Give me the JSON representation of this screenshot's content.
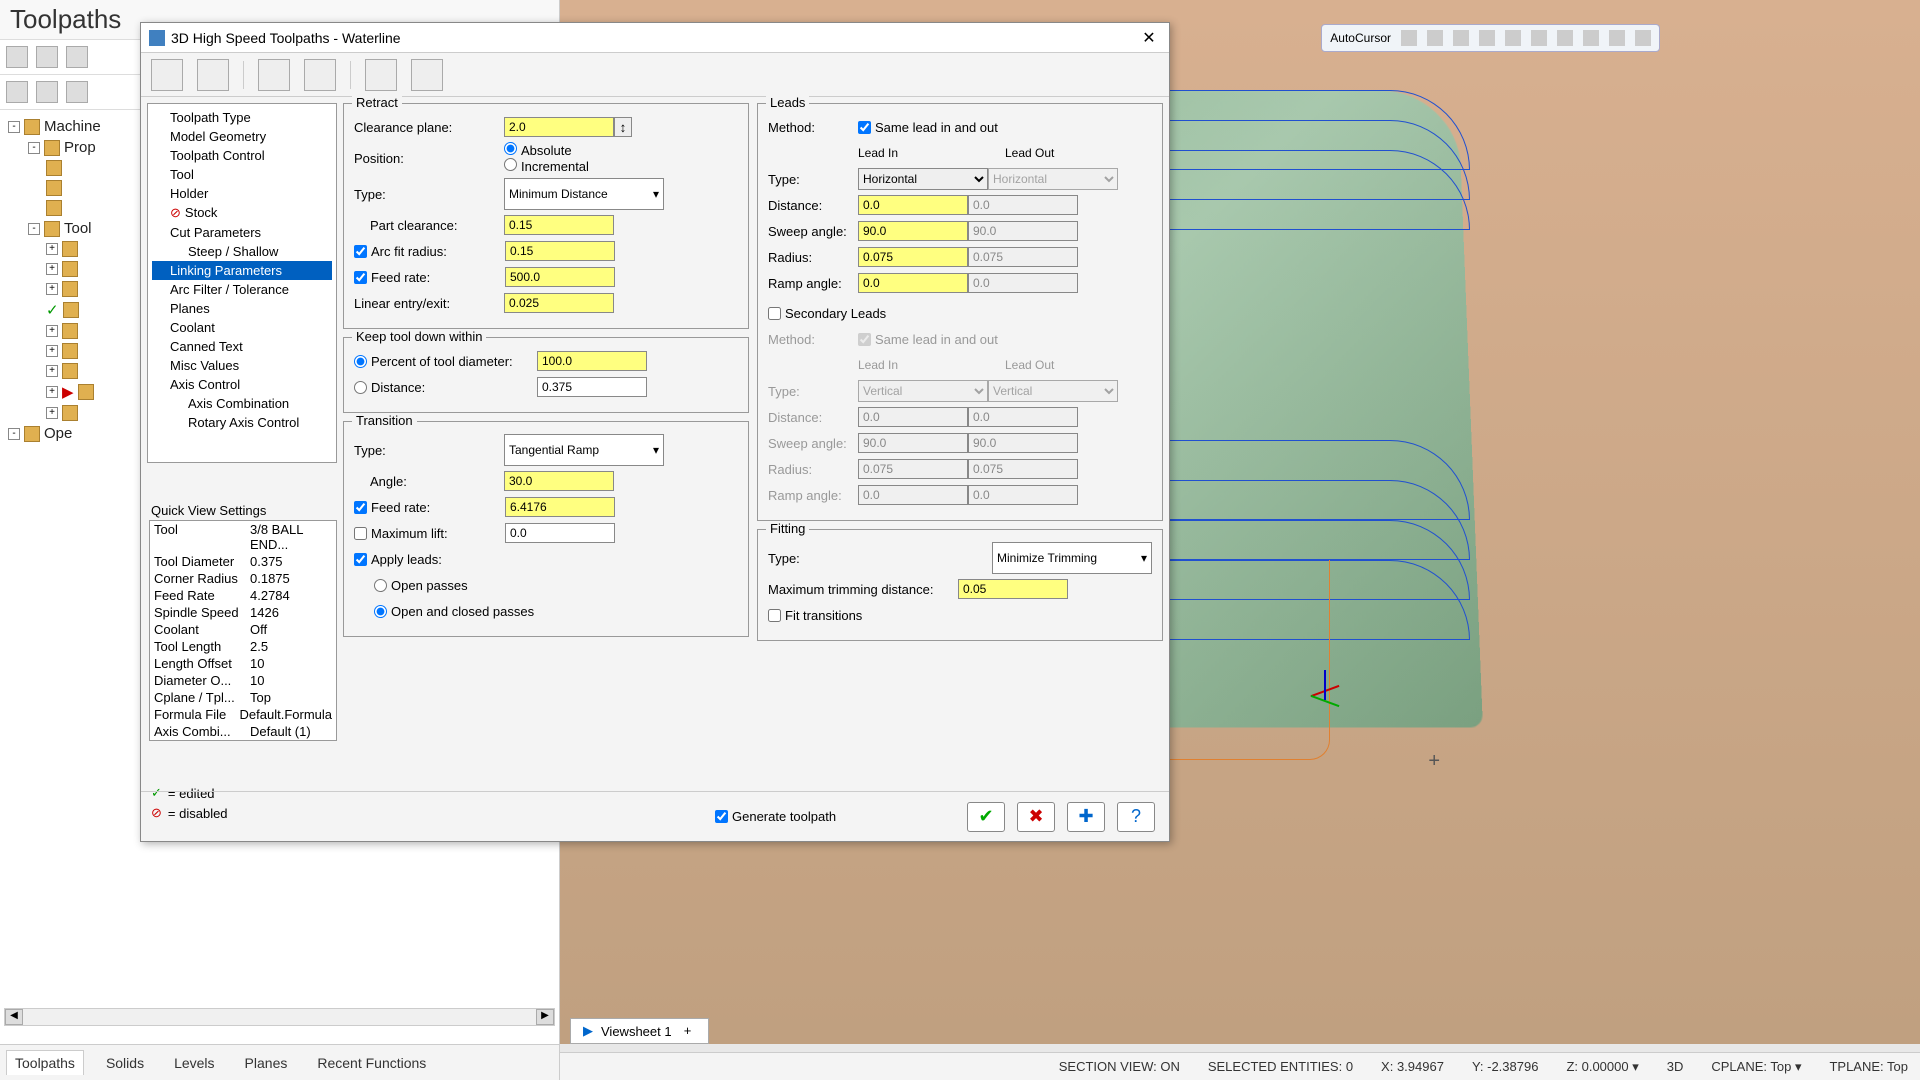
{
  "left": {
    "title": "Toolpaths",
    "tree": {
      "machine": "Machine",
      "prop": "Prop",
      "tool": "Tool",
      "ope": "Ope"
    },
    "bottom_tabs": [
      "Toolpaths",
      "Solids",
      "Levels",
      "Planes",
      "Recent Functions"
    ]
  },
  "dialog": {
    "title": "3D High Speed Toolpaths - Waterline",
    "tree": {
      "items": [
        {
          "label": "Toolpath Type"
        },
        {
          "label": "Model Geometry"
        },
        {
          "label": "Toolpath Control"
        },
        {
          "label": "Tool"
        },
        {
          "label": "Holder"
        },
        {
          "label": "Stock",
          "marker": true
        },
        {
          "label": "Cut Parameters"
        },
        {
          "label": "Steep / Shallow",
          "sub": true
        },
        {
          "label": "Linking Parameters",
          "sel": true
        },
        {
          "label": "Arc Filter / Tolerance"
        },
        {
          "label": "Planes"
        },
        {
          "label": "Coolant"
        },
        {
          "label": "Canned Text"
        },
        {
          "label": "Misc Values"
        },
        {
          "label": "Axis Control"
        },
        {
          "label": "Axis Combination",
          "sub": true
        },
        {
          "label": "Rotary Axis Control",
          "sub": true
        }
      ]
    },
    "qv": {
      "title": "Quick View Settings",
      "rows": [
        {
          "k": "Tool",
          "v": "3/8 BALL END..."
        },
        {
          "k": "Tool Diameter",
          "v": "0.375"
        },
        {
          "k": "Corner Radius",
          "v": "0.1875"
        },
        {
          "k": "Feed Rate",
          "v": "4.2784"
        },
        {
          "k": "Spindle Speed",
          "v": "1426"
        },
        {
          "k": "Coolant",
          "v": "Off"
        },
        {
          "k": "Tool Length",
          "v": "2.5"
        },
        {
          "k": "Length Offset",
          "v": "10"
        },
        {
          "k": "Diameter O...",
          "v": "10"
        },
        {
          "k": "Cplane / Tpl...",
          "v": "Top"
        },
        {
          "k": "Formula File",
          "v": "Default.Formula"
        },
        {
          "k": "Axis Combi...",
          "v": "Default (1)"
        }
      ]
    },
    "legend": {
      "edited": "= edited",
      "disabled": "= disabled"
    },
    "retract": {
      "title": "Retract",
      "clearance_label": "Clearance plane:",
      "clearance": "2.0",
      "position_label": "Position:",
      "absolute": "Absolute",
      "incremental": "Incremental",
      "type_label": "Type:",
      "type": "Minimum Distance",
      "part_clearance_label": "Part clearance:",
      "part_clearance": "0.15",
      "arc_fit_label": "Arc fit radius:",
      "arc_fit": "0.15",
      "feed_rate_label": "Feed rate:",
      "feed_rate": "500.0",
      "linear_label": "Linear entry/exit:",
      "linear": "0.025"
    },
    "keep": {
      "title": "Keep tool down within",
      "percent_label": "Percent of tool diameter:",
      "percent": "100.0",
      "distance_label": "Distance:",
      "distance": "0.375"
    },
    "transition": {
      "title": "Transition",
      "type_label": "Type:",
      "type": "Tangential Ramp",
      "angle_label": "Angle:",
      "angle": "30.0",
      "feed_rate_label": "Feed rate:",
      "feed_rate": "6.4176",
      "max_lift_label": "Maximum lift:",
      "max_lift": "0.0",
      "apply_leads_label": "Apply leads:",
      "open_passes": "Open passes",
      "open_closed": "Open and closed passes"
    },
    "leads": {
      "title": "Leads",
      "method_label": "Method:",
      "same_label": "Same lead in and out",
      "leadin": "Lead In",
      "leadout": "Lead Out",
      "type_label": "Type:",
      "type_in": "Horizontal",
      "type_out": "Horizontal",
      "distance_label": "Distance:",
      "distance_in": "0.0",
      "distance_out": "0.0",
      "sweep_label": "Sweep angle:",
      "sweep_in": "90.0",
      "sweep_out": "90.0",
      "radius_label": "Radius:",
      "radius_in": "0.075",
      "radius_out": "0.075",
      "ramp_label": "Ramp angle:",
      "ramp_in": "0.0",
      "ramp_out": "0.0"
    },
    "secondary": {
      "title": "Secondary Leads",
      "method_label": "Method:",
      "same_label": "Same lead in and out",
      "leadin": "Lead In",
      "leadout": "Lead Out",
      "type_label": "Type:",
      "type_in": "Vertical",
      "type_out": "Vertical",
      "distance_label": "Distance:",
      "distance_in": "0.0",
      "distance_out": "0.0",
      "sweep_label": "Sweep angle:",
      "sweep_in": "90.0",
      "sweep_out": "90.0",
      "radius_label": "Radius:",
      "radius_in": "0.075",
      "radius_out": "0.075",
      "ramp_label": "Ramp angle:",
      "ramp_in": "0.0",
      "ramp_out": "0.0"
    },
    "fitting": {
      "title": "Fitting",
      "type_label": "Type:",
      "type": "Minimize Trimming",
      "max_trim_label": "Maximum trimming distance:",
      "max_trim": "0.05",
      "fit_trans": "Fit transitions"
    },
    "footer": {
      "generate": "Generate toolpath"
    }
  },
  "viewport": {
    "autocursor": "AutoCursor",
    "viewsheet": "Viewsheet 1",
    "z_label": "Z"
  },
  "status": {
    "section": "SECTION VIEW: ON",
    "selected": "SELECTED ENTITIES: 0",
    "x": "X: 3.94967",
    "y": "Y: -2.38796",
    "z": "Z: 0.00000 ▾",
    "mode": "3D",
    "cplane": "CPLANE: Top ▾",
    "tplane": "TPLANE: Top"
  },
  "colors": {
    "highlight": "#ffff80",
    "selection": "#0060c0",
    "wire": "#2050d0",
    "surface1": "#8db492"
  }
}
